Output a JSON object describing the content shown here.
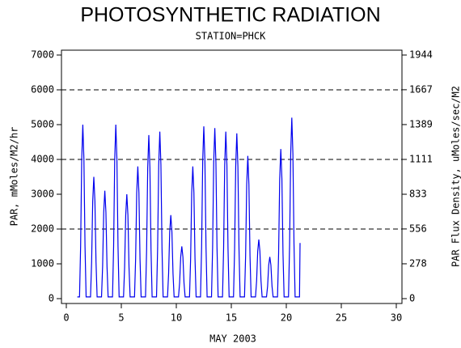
{
  "chart_data": {
    "type": "line",
    "title": "PHOTOSYNTHETIC RADIATION",
    "subtitle": "STATION=PHCK",
    "x_label": "MAY 2003",
    "y_label": "PAR, mMoles/M2/hr",
    "y2_label": "PAR Flux Density, uMoles/sec/M2",
    "xlim": [
      0,
      30
    ],
    "xticks": [
      0,
      5,
      10,
      15,
      20,
      25,
      30
    ],
    "ylim": [
      0,
      7000
    ],
    "yticks": [
      0,
      1000,
      2000,
      3000,
      4000,
      5000,
      6000,
      7000
    ],
    "y2lim": [
      0,
      1944
    ],
    "y2ticks": [
      0,
      278,
      556,
      833,
      1111,
      1389,
      1667,
      1944
    ],
    "grid_values": [
      2000,
      4000,
      6000
    ],
    "x": [
      1.0,
      1.2,
      1.3,
      1.4,
      1.5,
      1.6,
      1.7,
      1.8,
      2.2,
      2.3,
      2.4,
      2.5,
      2.6,
      2.7,
      2.8,
      3.2,
      3.3,
      3.4,
      3.5,
      3.6,
      3.7,
      3.8,
      4.2,
      4.3,
      4.4,
      4.5,
      4.6,
      4.7,
      4.8,
      5.2,
      5.3,
      5.4,
      5.5,
      5.6,
      5.7,
      5.8,
      6.2,
      6.3,
      6.4,
      6.5,
      6.6,
      6.7,
      6.8,
      7.2,
      7.3,
      7.4,
      7.5,
      7.6,
      7.7,
      7.8,
      8.2,
      8.3,
      8.4,
      8.5,
      8.6,
      8.7,
      8.8,
      9.2,
      9.3,
      9.4,
      9.5,
      9.6,
      9.7,
      9.8,
      10.2,
      10.3,
      10.4,
      10.5,
      10.6,
      10.7,
      10.8,
      11.2,
      11.3,
      11.4,
      11.5,
      11.6,
      11.7,
      11.8,
      12.2,
      12.3,
      12.4,
      12.5,
      12.6,
      12.7,
      12.8,
      13.2,
      13.3,
      13.4,
      13.5,
      13.6,
      13.7,
      13.8,
      14.2,
      14.3,
      14.4,
      14.5,
      14.6,
      14.7,
      14.8,
      15.2,
      15.3,
      15.4,
      15.5,
      15.6,
      15.7,
      15.8,
      16.2,
      16.3,
      16.4,
      16.5,
      16.6,
      16.7,
      16.8,
      17.2,
      17.3,
      17.4,
      17.5,
      17.6,
      17.7,
      17.8,
      18.2,
      18.3,
      18.4,
      18.5,
      18.6,
      18.7,
      18.8,
      19.2,
      19.3,
      19.4,
      19.5,
      19.6,
      19.7,
      19.8,
      20.2,
      20.3,
      20.4,
      20.5,
      20.6,
      20.7,
      20.8,
      21.2,
      21.25
    ],
    "series": [
      {
        "color": "#0000ee",
        "values": [
          50,
          50,
          1500,
          4000,
          5000,
          4000,
          1500,
          50,
          50,
          1050,
          2800,
          3500,
          2800,
          1050,
          50,
          50,
          930,
          2480,
          3100,
          2480,
          930,
          50,
          50,
          1500,
          4000,
          5000,
          4000,
          1500,
          50,
          50,
          900,
          2400,
          3000,
          2400,
          900,
          50,
          50,
          1140,
          3040,
          3800,
          3040,
          1140,
          50,
          50,
          1410,
          3760,
          4700,
          3760,
          1410,
          50,
          50,
          1440,
          3840,
          4800,
          3840,
          1440,
          50,
          50,
          720,
          1920,
          2400,
          1920,
          720,
          50,
          50,
          450,
          1200,
          1500,
          1200,
          450,
          50,
          50,
          1140,
          3040,
          3800,
          3040,
          1140,
          50,
          50,
          1485,
          3960,
          4950,
          3960,
          1485,
          50,
          50,
          1470,
          3920,
          4900,
          3920,
          1470,
          50,
          50,
          1440,
          3840,
          4800,
          3840,
          1440,
          50,
          50,
          1425,
          3800,
          4750,
          3800,
          1425,
          50,
          50,
          1230,
          3280,
          4100,
          3280,
          1230,
          50,
          50,
          510,
          1360,
          1700,
          1360,
          510,
          50,
          50,
          360,
          960,
          1200,
          960,
          360,
          50,
          50,
          1290,
          3440,
          4300,
          3440,
          1290,
          50,
          50,
          1560,
          4160,
          5200,
          4160,
          1560,
          50,
          50,
          1600
        ]
      }
    ]
  }
}
